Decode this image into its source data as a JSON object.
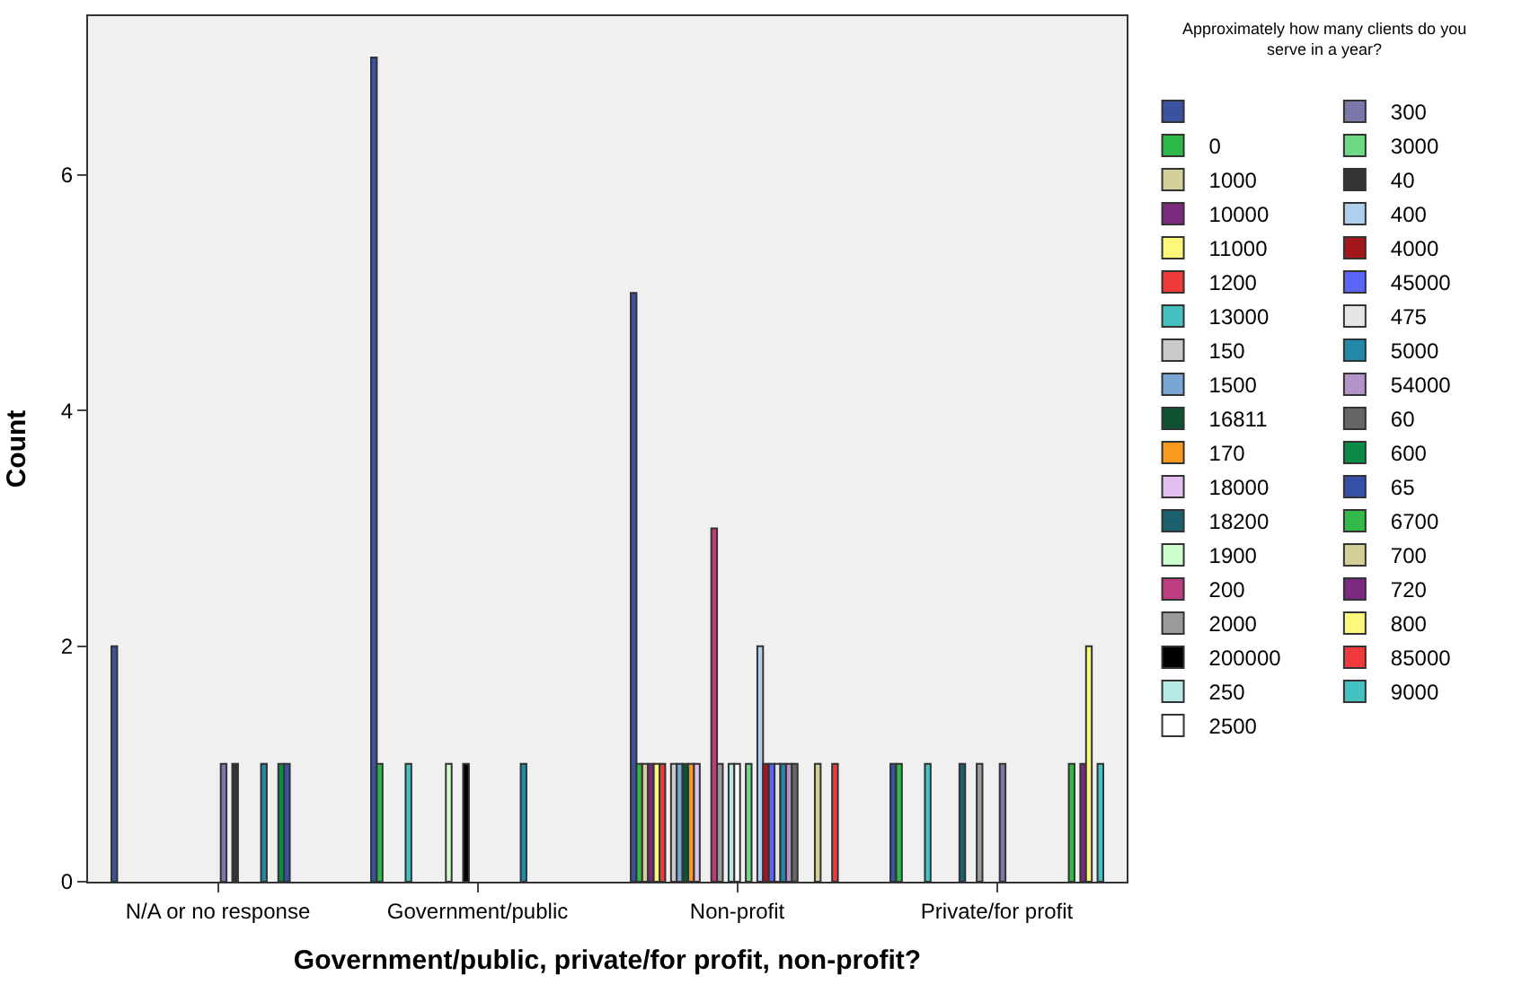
{
  "chart_data": {
    "type": "bar",
    "xlabel": "Government/public, private/for profit, non-profit?",
    "ylabel": "Count",
    "legend_title": "Approximately how many clients do you serve in a year?",
    "categories": [
      "N/A or no response",
      "Government/public",
      "Non-profit",
      "Private/for profit"
    ],
    "ylim": [
      0,
      7.35
    ],
    "yticks": [
      0,
      2,
      4,
      6
    ],
    "grid": false,
    "legend": "right",
    "series": [
      {
        "color": "#3a52a0",
        "values": [
          2,
          7,
          5,
          1
        ]
      },
      {
        "name": "0",
        "color": "#2db84a",
        "values": [
          null,
          1,
          1,
          1
        ]
      },
      {
        "name": "1000",
        "color": "#d6cf99",
        "values": [
          null,
          null,
          1,
          null
        ]
      },
      {
        "name": "10000",
        "color": "#7b2a7e",
        "values": [
          null,
          null,
          1,
          null
        ]
      },
      {
        "name": "11000",
        "color": "#fdf77a",
        "values": [
          null,
          null,
          1,
          null
        ]
      },
      {
        "name": "1200",
        "color": "#f03a3a",
        "values": [
          null,
          null,
          1,
          null
        ]
      },
      {
        "name": "13000",
        "color": "#45c1c1",
        "values": [
          null,
          1,
          null,
          1
        ]
      },
      {
        "name": "150",
        "color": "#c9c9c9",
        "values": [
          null,
          null,
          1,
          null
        ]
      },
      {
        "name": "1500",
        "color": "#7aa6d6",
        "values": [
          null,
          null,
          1,
          null
        ]
      },
      {
        "name": "16811",
        "color": "#0e5233",
        "values": [
          null,
          null,
          1,
          null
        ]
      },
      {
        "name": "170",
        "color": "#f89a1e",
        "values": [
          null,
          null,
          1,
          null
        ]
      },
      {
        "name": "18000",
        "color": "#e3bff0",
        "values": [
          null,
          null,
          1,
          null
        ]
      },
      {
        "name": "18200",
        "color": "#1c5f6e",
        "values": [
          null,
          null,
          null,
          1
        ]
      },
      {
        "name": "1900",
        "color": "#ccffcc",
        "values": [
          null,
          1,
          null,
          null
        ]
      },
      {
        "name": "200",
        "color": "#bd3d7e",
        "values": [
          null,
          null,
          3,
          null
        ]
      },
      {
        "name": "2000",
        "color": "#9a9a9a",
        "values": [
          null,
          null,
          1,
          1
        ]
      },
      {
        "name": "200000",
        "color": "#000000",
        "values": [
          null,
          1,
          null,
          null
        ]
      },
      {
        "name": "250",
        "color": "#b6e8e6",
        "values": [
          null,
          null,
          1,
          null
        ]
      },
      {
        "name": "2500",
        "color": "#ffffff",
        "values": [
          null,
          null,
          1,
          null
        ]
      },
      {
        "name": "300",
        "color": "#7a78a8",
        "values": [
          1,
          null,
          null,
          1
        ]
      },
      {
        "name": "3000",
        "color": "#6ddb85",
        "values": [
          null,
          null,
          1,
          null
        ]
      },
      {
        "name": "40",
        "color": "#333333",
        "values": [
          1,
          null,
          null,
          null
        ]
      },
      {
        "name": "400",
        "color": "#aed0ee",
        "values": [
          null,
          null,
          2,
          null
        ]
      },
      {
        "name": "4000",
        "color": "#a3161c",
        "values": [
          null,
          null,
          1,
          null
        ]
      },
      {
        "name": "45000",
        "color": "#5c64f7",
        "values": [
          null,
          null,
          1,
          null
        ]
      },
      {
        "name": "475",
        "color": "#e6e6e6",
        "values": [
          null,
          null,
          1,
          null
        ]
      },
      {
        "name": "5000",
        "color": "#2389a8",
        "values": [
          1,
          1,
          1,
          null
        ]
      },
      {
        "name": "54000",
        "color": "#b493c8",
        "values": [
          null,
          null,
          1,
          null
        ]
      },
      {
        "name": "60",
        "color": "#666666",
        "values": [
          null,
          null,
          1,
          null
        ]
      },
      {
        "name": "600",
        "color": "#0a8a45",
        "values": [
          1,
          null,
          null,
          null
        ]
      },
      {
        "name": "65",
        "color": "#3550a8",
        "values": [
          1,
          null,
          null,
          null
        ]
      },
      {
        "name": "6700",
        "color": "#33b84a",
        "values": [
          null,
          null,
          null,
          1
        ]
      },
      {
        "name": "700",
        "color": "#d4cf98",
        "values": [
          null,
          null,
          1,
          null
        ]
      },
      {
        "name": "720",
        "color": "#7b2a7f",
        "values": [
          null,
          null,
          null,
          1
        ]
      },
      {
        "name": "800",
        "color": "#fdf77b",
        "values": [
          null,
          null,
          null,
          2
        ]
      },
      {
        "name": "85000",
        "color": "#f03a3b",
        "values": [
          null,
          null,
          1,
          null
        ]
      },
      {
        "name": "9000",
        "color": "#45c1c2",
        "values": [
          null,
          null,
          null,
          1
        ]
      }
    ]
  }
}
